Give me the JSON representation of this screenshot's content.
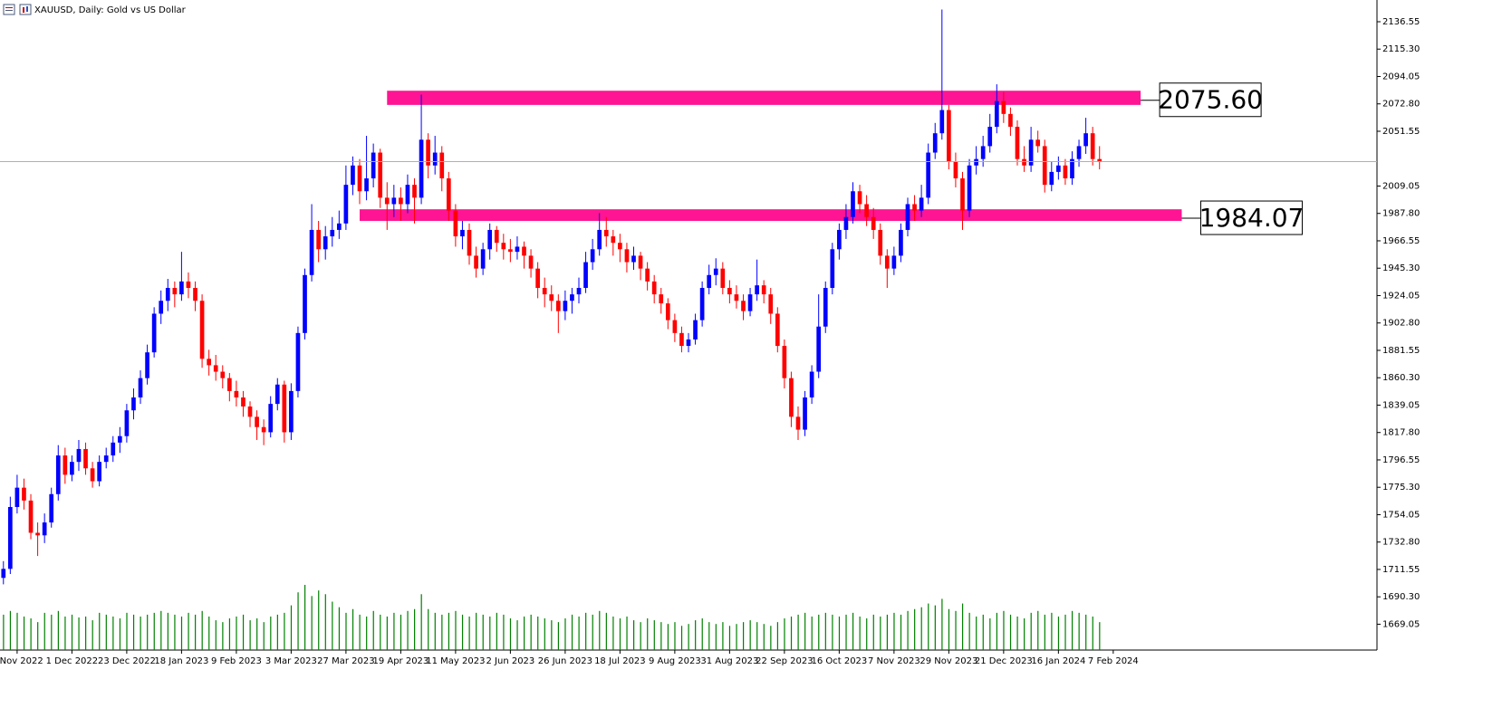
{
  "chart_data": {
    "type": "candlestick",
    "title": "XAUUSD, Daily:  Gold vs US Dollar",
    "up_color": "#0000ff",
    "down_color": "#ff0000",
    "volume_color": "#008000",
    "zone_color": "#ff1493",
    "ylim": [
      1649,
      2153.4
    ],
    "yticks": [
      2136.55,
      {
        "value": 2115.3,
        "label": "2115.30"
      },
      2094.05,
      {
        "value": 2072.8,
        "label": "2072.80"
      },
      2051.55,
      2009.05,
      {
        "value": 1987.8,
        "label": "1987.80"
      },
      1966.55,
      {
        "value": 1945.3,
        "label": "1945.30"
      },
      1924.05,
      {
        "value": 1902.8,
        "label": "1902.80"
      },
      1881.55,
      {
        "value": 1860.3,
        "label": "1860.30"
      },
      1839.05,
      {
        "value": 1817.8,
        "label": "1817.80"
      },
      1796.55,
      {
        "value": 1775.3,
        "label": "1775.30"
      },
      1754.05,
      {
        "value": 1732.8,
        "label": "1732.80"
      },
      1711.55,
      {
        "value": 1690.3,
        "label": "1690.30"
      },
      1669.05
    ],
    "xlim": [
      -0.5,
      200.5
    ],
    "xticks": [
      {
        "value": 2,
        "label": "9 Nov 2022"
      },
      {
        "value": 10,
        "label": "1 Dec 2022"
      },
      {
        "value": 18,
        "label": "23 Dec 2022"
      },
      {
        "value": 26,
        "label": "18 Jan 2023"
      },
      {
        "value": 34,
        "label": "9 Feb 2023"
      },
      {
        "value": 42,
        "label": "3 Mar 2023"
      },
      {
        "value": 50,
        "label": "27 Mar 2023"
      },
      {
        "value": 58,
        "label": "19 Apr 2023"
      },
      {
        "value": 66,
        "label": "11 May 2023"
      },
      {
        "value": 74,
        "label": "2 Jun 2023"
      },
      {
        "value": 82,
        "label": "26 Jun 2023"
      },
      {
        "value": 90,
        "label": "18 Jul 2023"
      },
      {
        "value": 98,
        "label": "9 Aug 2023"
      },
      {
        "value": 106,
        "label": "31 Aug 2023"
      },
      {
        "value": 114,
        "label": "22 Sep 2023"
      },
      {
        "value": 122,
        "label": "16 Oct 2023"
      },
      {
        "value": 130,
        "label": "7 Nov 2023"
      },
      {
        "value": 138,
        "label": "29 Nov 2023"
      },
      {
        "value": 146,
        "label": "21 Dec 2023"
      },
      {
        "value": 154,
        "label": "16 Jan 2024"
      },
      {
        "value": 162,
        "label": "7 Feb 2024"
      }
    ],
    "zones": [
      {
        "label": "2075.60",
        "level": 2075.6,
        "top": 2083,
        "bottom": 2072,
        "start": 56,
        "end": 166
      },
      {
        "label": "1984.07",
        "level": 1984.07,
        "top": 1991,
        "bottom": 1982,
        "start": 52,
        "end": 172
      }
    ],
    "ohlc": [
      [
        1705,
        1718,
        1700,
        1712
      ],
      [
        1712,
        1768,
        1708,
        1760
      ],
      [
        1760,
        1785,
        1755,
        1775
      ],
      [
        1775,
        1782,
        1758,
        1765
      ],
      [
        1765,
        1770,
        1735,
        1740
      ],
      [
        1740,
        1748,
        1722,
        1738
      ],
      [
        1738,
        1755,
        1732,
        1748
      ],
      [
        1748,
        1775,
        1744,
        1770
      ],
      [
        1770,
        1808,
        1765,
        1800
      ],
      [
        1800,
        1806,
        1778,
        1785
      ],
      [
        1785,
        1800,
        1780,
        1795
      ],
      [
        1795,
        1812,
        1788,
        1805
      ],
      [
        1805,
        1810,
        1785,
        1790
      ],
      [
        1790,
        1795,
        1775,
        1780
      ],
      [
        1780,
        1800,
        1776,
        1795
      ],
      [
        1795,
        1806,
        1790,
        1800
      ],
      [
        1800,
        1815,
        1795,
        1810
      ],
      [
        1810,
        1822,
        1802,
        1815
      ],
      [
        1815,
        1840,
        1810,
        1835
      ],
      [
        1835,
        1852,
        1828,
        1845
      ],
      [
        1845,
        1866,
        1840,
        1860
      ],
      [
        1860,
        1886,
        1855,
        1880
      ],
      [
        1880,
        1915,
        1876,
        1910
      ],
      [
        1910,
        1928,
        1902,
        1920
      ],
      [
        1920,
        1937,
        1912,
        1930
      ],
      [
        1930,
        1935,
        1915,
        1925
      ],
      [
        1925,
        1958,
        1920,
        1935
      ],
      [
        1935,
        1942,
        1922,
        1930
      ],
      [
        1930,
        1935,
        1912,
        1920
      ],
      [
        1920,
        1925,
        1868,
        1875
      ],
      [
        1875,
        1882,
        1862,
        1870
      ],
      [
        1870,
        1878,
        1858,
        1865
      ],
      [
        1865,
        1870,
        1852,
        1860
      ],
      [
        1860,
        1864,
        1842,
        1850
      ],
      [
        1850,
        1858,
        1838,
        1845
      ],
      [
        1845,
        1850,
        1830,
        1838
      ],
      [
        1838,
        1842,
        1822,
        1830
      ],
      [
        1830,
        1835,
        1812,
        1822
      ],
      [
        1822,
        1828,
        1808,
        1818
      ],
      [
        1818,
        1846,
        1814,
        1840
      ],
      [
        1840,
        1860,
        1835,
        1855
      ],
      [
        1855,
        1858,
        1810,
        1818
      ],
      [
        1818,
        1856,
        1812,
        1850
      ],
      [
        1850,
        1900,
        1845,
        1895
      ],
      [
        1895,
        1945,
        1890,
        1940
      ],
      [
        1940,
        1995,
        1935,
        1975
      ],
      [
        1975,
        1982,
        1950,
        1960
      ],
      [
        1960,
        1978,
        1952,
        1970
      ],
      [
        1970,
        1985,
        1962,
        1975
      ],
      [
        1975,
        1990,
        1968,
        1980
      ],
      [
        1980,
        2025,
        1975,
        2010
      ],
      [
        2010,
        2032,
        2002,
        2025
      ],
      [
        2025,
        2030,
        1995,
        2005
      ],
      [
        2005,
        2048,
        1998,
        2015
      ],
      [
        2015,
        2042,
        2008,
        2035
      ],
      [
        2035,
        2038,
        1992,
        2000
      ],
      [
        2000,
        2012,
        1975,
        1995
      ],
      [
        1995,
        2010,
        1985,
        2000
      ],
      [
        2000,
        2008,
        1982,
        1995
      ],
      [
        1995,
        2018,
        1988,
        2010
      ],
      [
        2010,
        2015,
        1980,
        2000
      ],
      [
        2000,
        2080,
        1995,
        2045
      ],
      [
        2045,
        2050,
        2015,
        2025
      ],
      [
        2025,
        2048,
        2018,
        2035
      ],
      [
        2035,
        2040,
        2005,
        2015
      ],
      [
        2015,
        2020,
        1982,
        1990
      ],
      [
        1990,
        1995,
        1962,
        1970
      ],
      [
        1970,
        1982,
        1960,
        1975
      ],
      [
        1975,
        1980,
        1948,
        1955
      ],
      [
        1955,
        1962,
        1938,
        1945
      ],
      [
        1945,
        1965,
        1940,
        1960
      ],
      [
        1960,
        1980,
        1952,
        1975
      ],
      [
        1975,
        1978,
        1958,
        1965
      ],
      [
        1965,
        1972,
        1952,
        1960
      ],
      [
        1960,
        1968,
        1950,
        1958
      ],
      [
        1958,
        1970,
        1952,
        1962
      ],
      [
        1962,
        1966,
        1945,
        1955
      ],
      [
        1955,
        1960,
        1938,
        1945
      ],
      [
        1945,
        1950,
        1922,
        1930
      ],
      [
        1930,
        1938,
        1915,
        1925
      ],
      [
        1925,
        1932,
        1912,
        1920
      ],
      [
        1920,
        1925,
        1895,
        1912
      ],
      [
        1912,
        1928,
        1905,
        1920
      ],
      [
        1920,
        1930,
        1910,
        1925
      ],
      [
        1925,
        1938,
        1918,
        1930
      ],
      [
        1930,
        1958,
        1926,
        1950
      ],
      [
        1950,
        1968,
        1944,
        1960
      ],
      [
        1960,
        1988,
        1955,
        1975
      ],
      [
        1975,
        1985,
        1962,
        1970
      ],
      [
        1970,
        1975,
        1955,
        1965
      ],
      [
        1965,
        1972,
        1950,
        1960
      ],
      [
        1960,
        1965,
        1942,
        1950
      ],
      [
        1950,
        1962,
        1944,
        1955
      ],
      [
        1955,
        1958,
        1936,
        1945
      ],
      [
        1945,
        1950,
        1928,
        1935
      ],
      [
        1935,
        1940,
        1918,
        1925
      ],
      [
        1925,
        1930,
        1910,
        1918
      ],
      [
        1918,
        1922,
        1898,
        1905
      ],
      [
        1905,
        1910,
        1888,
        1895
      ],
      [
        1895,
        1900,
        1880,
        1885
      ],
      [
        1885,
        1895,
        1880,
        1890
      ],
      [
        1890,
        1910,
        1886,
        1905
      ],
      [
        1905,
        1935,
        1900,
        1930
      ],
      [
        1930,
        1948,
        1925,
        1940
      ],
      [
        1940,
        1953,
        1932,
        1945
      ],
      [
        1945,
        1950,
        1925,
        1930
      ],
      [
        1930,
        1936,
        1918,
        1925
      ],
      [
        1925,
        1932,
        1914,
        1920
      ],
      [
        1920,
        1925,
        1905,
        1912
      ],
      [
        1912,
        1930,
        1908,
        1925
      ],
      [
        1925,
        1952,
        1920,
        1932
      ],
      [
        1932,
        1936,
        1918,
        1925
      ],
      [
        1925,
        1930,
        1902,
        1910
      ],
      [
        1910,
        1915,
        1880,
        1885
      ],
      [
        1885,
        1890,
        1852,
        1860
      ],
      [
        1860,
        1865,
        1822,
        1830
      ],
      [
        1830,
        1838,
        1812,
        1820
      ],
      [
        1820,
        1850,
        1815,
        1845
      ],
      [
        1845,
        1870,
        1840,
        1865
      ],
      [
        1865,
        1925,
        1860,
        1900
      ],
      [
        1900,
        1935,
        1895,
        1930
      ],
      [
        1930,
        1965,
        1925,
        1960
      ],
      [
        1960,
        1980,
        1952,
        1975
      ],
      [
        1975,
        1995,
        1968,
        1985
      ],
      [
        1985,
        2012,
        1980,
        2005
      ],
      [
        2005,
        2010,
        1988,
        1995
      ],
      [
        1995,
        2002,
        1978,
        1985
      ],
      [
        1985,
        1992,
        1968,
        1975
      ],
      [
        1975,
        1980,
        1948,
        1955
      ],
      [
        1955,
        1960,
        1930,
        1945
      ],
      [
        1945,
        1962,
        1940,
        1955
      ],
      [
        1955,
        1980,
        1950,
        1975
      ],
      [
        1975,
        2000,
        1970,
        1995
      ],
      [
        1995,
        2002,
        1982,
        1990
      ],
      [
        1990,
        2010,
        1985,
        2000
      ],
      [
        2000,
        2042,
        1995,
        2035
      ],
      [
        2035,
        2058,
        2030,
        2050
      ],
      [
        2050,
        2146,
        2045,
        2068
      ],
      [
        2068,
        2072,
        2022,
        2028
      ],
      [
        2028,
        2035,
        2008,
        2015
      ],
      [
        2015,
        2020,
        1975,
        1990
      ],
      [
        1990,
        2030,
        1985,
        2025
      ],
      [
        2025,
        2040,
        2018,
        2030
      ],
      [
        2030,
        2048,
        2024,
        2040
      ],
      [
        2040,
        2065,
        2035,
        2055
      ],
      [
        2055,
        2088,
        2050,
        2075
      ],
      [
        2075,
        2082,
        2058,
        2065
      ],
      [
        2065,
        2070,
        2048,
        2055
      ],
      [
        2055,
        2060,
        2025,
        2030
      ],
      [
        2030,
        2040,
        2020,
        2025
      ],
      [
        2025,
        2055,
        2020,
        2045
      ],
      [
        2045,
        2052,
        2035,
        2040
      ],
      [
        2040,
        2045,
        2004,
        2010
      ],
      [
        2010,
        2028,
        2005,
        2020
      ],
      [
        2020,
        2032,
        2014,
        2025
      ],
      [
        2025,
        2030,
        2010,
        2015
      ],
      [
        2015,
        2036,
        2010,
        2030
      ],
      [
        2030,
        2045,
        2024,
        2040
      ],
      [
        2040,
        2062,
        2034,
        2050
      ],
      [
        2050,
        2055,
        2025,
        2030
      ],
      [
        2030,
        2040,
        2022,
        2028
      ]
    ],
    "volume": [
      38,
      42,
      40,
      36,
      34,
      30,
      40,
      38,
      42,
      36,
      38,
      35,
      36,
      32,
      40,
      38,
      36,
      34,
      40,
      38,
      36,
      38,
      40,
      42,
      40,
      38,
      36,
      40,
      38,
      42,
      36,
      32,
      30,
      34,
      36,
      38,
      32,
      34,
      30,
      36,
      38,
      40,
      48,
      62,
      70,
      58,
      64,
      60,
      52,
      46,
      40,
      44,
      38,
      36,
      42,
      38,
      36,
      40,
      38,
      42,
      44,
      60,
      44,
      40,
      38,
      40,
      42,
      38,
      36,
      40,
      38,
      36,
      40,
      38,
      34,
      32,
      36,
      38,
      36,
      34,
      32,
      30,
      34,
      38,
      36,
      40,
      38,
      42,
      40,
      36,
      34,
      36,
      32,
      30,
      34,
      32,
      30,
      28,
      30,
      26,
      28,
      32,
      34,
      30,
      28,
      30,
      26,
      28,
      30,
      32,
      30,
      28,
      26,
      30,
      34,
      36,
      38,
      40,
      36,
      38,
      40,
      38,
      36,
      38,
      40,
      36,
      34,
      38,
      36,
      38,
      40,
      38,
      42,
      44,
      46,
      50,
      48,
      55,
      44,
      42,
      50,
      40,
      36,
      38,
      34,
      40,
      42,
      38,
      36,
      34,
      40,
      42,
      38,
      40,
      36,
      38,
      42,
      40,
      38,
      36,
      30
    ]
  }
}
